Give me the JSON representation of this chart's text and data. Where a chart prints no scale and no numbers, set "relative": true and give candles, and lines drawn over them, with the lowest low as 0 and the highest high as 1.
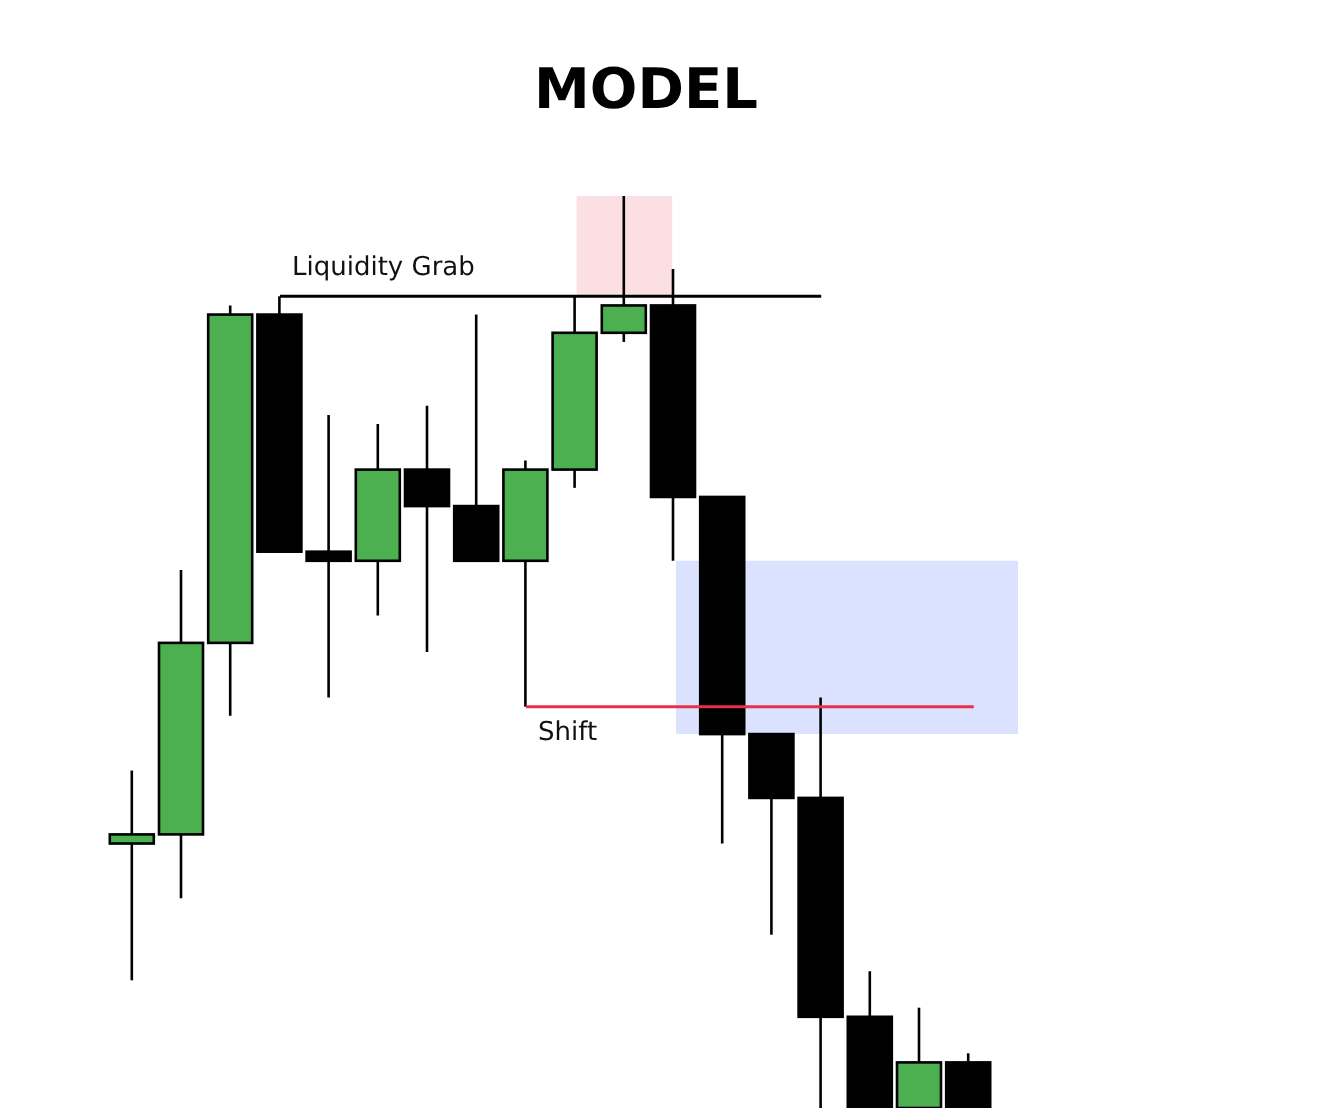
{
  "chart_data": {
    "type": "candlestick",
    "title": "MODEL",
    "relative": true,
    "categories": [
      null,
      null,
      null,
      null,
      null,
      null,
      null,
      null,
      null,
      null,
      null,
      null,
      null,
      null,
      null,
      null,
      null,
      null
    ],
    "ohlc": [
      [
        0.29,
        0.37,
        0.14,
        0.3
      ],
      [
        0.3,
        0.59,
        0.23,
        0.51
      ],
      [
        0.51,
        0.88,
        0.43,
        0.87
      ],
      [
        0.87,
        0.89,
        0.61,
        0.61
      ],
      [
        0.61,
        0.76,
        0.45,
        0.6
      ],
      [
        0.6,
        0.75,
        0.54,
        0.7
      ],
      [
        0.7,
        0.77,
        0.5,
        0.66
      ],
      [
        0.66,
        0.87,
        0.6,
        0.6
      ],
      [
        0.6,
        0.71,
        0.44,
        0.7
      ],
      [
        0.7,
        0.89,
        0.68,
        0.85
      ],
      [
        0.85,
        1.0,
        0.84,
        0.88
      ],
      [
        0.88,
        0.92,
        0.6,
        0.67
      ],
      [
        0.67,
        0.67,
        0.29,
        0.41
      ],
      [
        0.41,
        0.41,
        0.19,
        0.34
      ],
      [
        0.34,
        0.45,
        0,
        0.1
      ],
      [
        0.1,
        0.15,
        0,
        0
      ],
      [
        0,
        0.11,
        0,
        0.05
      ],
      [
        0.05,
        0.06,
        0,
        0
      ]
    ],
    "colors": [
      "#4caf50",
      "#4caf50",
      "#4caf50",
      "#000000",
      "#000000",
      "#4caf50",
      "#000000",
      "#000000",
      "#4caf50",
      "#4caf50",
      "#4caf50",
      "#000000",
      "#000000",
      "#000000",
      "#000000",
      "#000000",
      "#4caf50",
      "#000000"
    ],
    "ref_lines": [
      {
        "axis": "y",
        "value": 0.89,
        "label": "Liquidity Grab",
        "color": "#000000"
      },
      {
        "axis": "y",
        "value": 0.44,
        "label": "Shift",
        "color": "#e8304a"
      }
    ],
    "bands": [
      {
        "axis": "y",
        "from": 0.89,
        "to": 1.0,
        "color": "#f7c0c6"
      },
      {
        "axis": "y",
        "from": 0.41,
        "to": 0.6,
        "color": "#b5c6ff"
      }
    ]
  }
}
